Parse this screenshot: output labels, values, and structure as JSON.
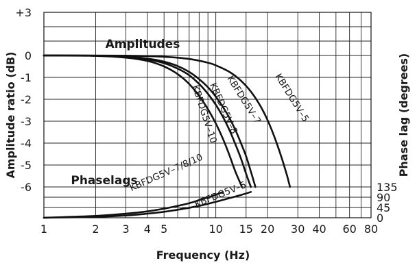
{
  "chart_data": {
    "type": "line",
    "xlabel": "Frequency (Hz)",
    "ylabel_left": "Amplitude ratio (dB)",
    "ylabel_right": "Phase lag (degrees)",
    "x_scale": "log",
    "xlim": [
      1,
      80
    ],
    "x_ticks": [
      {
        "value": 1,
        "label": "1"
      },
      {
        "value": 2,
        "label": "2"
      },
      {
        "value": 3,
        "label": "3"
      },
      {
        "value": 4,
        "label": "4"
      },
      {
        "value": 5,
        "label": "5"
      },
      {
        "value": 10,
        "label": "10"
      },
      {
        "value": 15,
        "label": "15"
      },
      {
        "value": 20,
        "label": "20"
      },
      {
        "value": 30,
        "label": "30"
      },
      {
        "value": 40,
        "label": "40"
      },
      {
        "value": 60,
        "label": "60"
      },
      {
        "value": 80,
        "label": "80"
      }
    ],
    "x_grid": [
      1,
      2,
      3,
      4,
      5,
      6,
      7,
      8,
      9,
      10,
      15,
      20,
      30,
      40,
      50,
      60,
      70,
      80
    ],
    "amplitude_axis": {
      "ylim": [
        -6,
        3
      ],
      "ticks": [
        {
          "value": 3,
          "label": "+3"
        },
        {
          "value": 0,
          "label": "0"
        },
        {
          "value": -1,
          "label": "-1"
        },
        {
          "value": -2,
          "label": "-2"
        },
        {
          "value": -3,
          "label": "-3"
        },
        {
          "value": -4,
          "label": "-4"
        },
        {
          "value": -5,
          "label": "-5"
        },
        {
          "value": -6,
          "label": "-6"
        }
      ],
      "grid": [
        3,
        2,
        1,
        0,
        -1,
        -2,
        -3,
        -4,
        -5,
        -6
      ]
    },
    "phase_axis": {
      "ylim": [
        0,
        135
      ],
      "ticks": [
        {
          "value": 135,
          "label": "135"
        },
        {
          "value": 90,
          "label": "90"
        },
        {
          "value": 45,
          "label": "45"
        },
        {
          "value": 0,
          "label": "0"
        }
      ],
      "grid": [
        0,
        45,
        90,
        135
      ]
    },
    "annotations": {
      "amplitudes": "Amplitudes",
      "phaselags": "Phaselags"
    },
    "amplitude_series": [
      {
        "name": "KBFDG5V–10",
        "x": [
          1,
          2,
          3,
          4,
          5,
          6,
          7,
          8,
          9,
          10,
          11,
          12,
          13,
          14.2
        ],
        "y": [
          0,
          -0.02,
          -0.1,
          -0.25,
          -0.5,
          -0.85,
          -1.3,
          -1.85,
          -2.45,
          -3.1,
          -3.8,
          -4.55,
          -5.3,
          -6
        ]
      },
      {
        "name": "KBFDG5V–8",
        "x": [
          1,
          2,
          3,
          4,
          5,
          6,
          7,
          8,
          9,
          10,
          11,
          12,
          13,
          14,
          15,
          16
        ],
        "y": [
          0,
          -0.01,
          -0.06,
          -0.18,
          -0.35,
          -0.6,
          -0.9,
          -1.3,
          -1.75,
          -2.25,
          -2.8,
          -3.4,
          -4.05,
          -4.7,
          -5.4,
          -6
        ]
      },
      {
        "name": "KBFDG5V–7",
        "x": [
          1,
          2,
          3,
          4,
          5,
          6,
          7,
          8,
          9,
          10,
          11,
          12,
          13,
          14,
          15,
          16,
          17
        ],
        "y": [
          0,
          -0.01,
          -0.05,
          -0.14,
          -0.28,
          -0.48,
          -0.75,
          -1.08,
          -1.45,
          -1.88,
          -2.35,
          -2.85,
          -3.4,
          -4.0,
          -4.6,
          -5.3,
          -6
        ]
      },
      {
        "name": "KBFDG5V–5",
        "x": [
          1,
          3,
          5,
          7,
          9,
          10,
          12,
          14,
          16,
          18,
          20,
          22,
          24,
          26,
          27
        ],
        "y": [
          0,
          -0.01,
          -0.06,
          -0.16,
          -0.33,
          -0.45,
          -0.75,
          -1.15,
          -1.65,
          -2.25,
          -2.95,
          -3.75,
          -4.6,
          -5.5,
          -6
        ]
      }
    ],
    "phase_series": [
      {
        "name": "KBFDG5V–7/8/10",
        "x": [
          1,
          2,
          3,
          4,
          5,
          6,
          7,
          8,
          9,
          10,
          11
        ],
        "y": [
          0,
          8,
          18,
          28,
          40,
          52,
          64,
          77,
          89,
          101,
          113
        ]
      },
      {
        "name": "KBFDG5V–5",
        "x": [
          1,
          2,
          3,
          4,
          5,
          6,
          8,
          10,
          12,
          14,
          16
        ],
        "y": [
          0,
          4,
          10,
          18,
          26,
          35,
          52,
          70,
          86,
          100,
          113
        ]
      }
    ]
  }
}
